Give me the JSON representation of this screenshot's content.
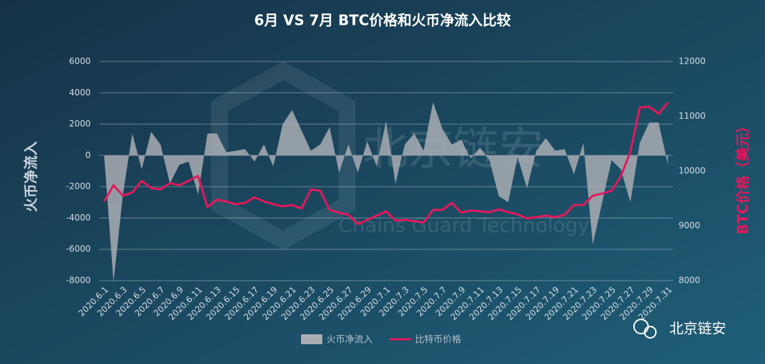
{
  "chart_data": {
    "type": "area-line",
    "title": "6月 VS 7月 BTC价格和火币净流入比较",
    "y_label": "火币净流入",
    "y2_label": "BTC价格（美元）",
    "watermark": "北京链安",
    "watermark_sub": "Chains Guard Technology",
    "badge": "北京链安",
    "categories": [
      "2020.6.1",
      null,
      "2020.6.3",
      null,
      "2020.6.5",
      null,
      "2020.6.7",
      null,
      "2020.6.9",
      null,
      "2020.6.11",
      null,
      "2020.6.13",
      null,
      "2020.6.15",
      null,
      "2020.6.17",
      null,
      "2020.6.19",
      null,
      "2020.6.21",
      null,
      "2020.6.23",
      null,
      "2020.6.25",
      null,
      "2020.6.27",
      null,
      "2020.6.29",
      null,
      "2020.7.1",
      null,
      "2020.7.3",
      null,
      "2020.7.5",
      null,
      "2020.7.7",
      null,
      "2020.7.9",
      null,
      "2020.7.11",
      null,
      "2020.7.13",
      null,
      "2020.7.15",
      null,
      "2020.7.17",
      null,
      "2020.7.19",
      null,
      "2020.7.21",
      null,
      "2020.7.23",
      null,
      "2020.7.25",
      null,
      "2020.7.27",
      null,
      "2020.7.29",
      null,
      "2020.7.31"
    ],
    "series": [
      {
        "name": "火币净流入",
        "color": "#a9adb3",
        "kind": "area",
        "values": [
          0,
          -8100,
          -2500,
          1400,
          -900,
          1500,
          700,
          -1800,
          -600,
          -400,
          -2500,
          1400,
          1400,
          200,
          300,
          400,
          -400,
          700,
          -700,
          2000,
          2900,
          1600,
          300,
          700,
          1800,
          -1100,
          700,
          -1100,
          900,
          -700,
          2200,
          -1800,
          700,
          1400,
          300,
          3400,
          1700,
          700,
          1000,
          -200,
          500,
          -300,
          -2600,
          -3000,
          -100,
          -2100,
          300,
          1100,
          300,
          400,
          -1200,
          800,
          -5700,
          -3000,
          -300,
          -900,
          -3000,
          800,
          2100,
          2100,
          -600
        ]
      },
      {
        "name": "比特币价格",
        "color": "#e3195c",
        "kind": "line",
        "axis": "y2",
        "values": [
          9445,
          9740,
          9550,
          9610,
          9820,
          9690,
          9665,
          9780,
          9740,
          9820,
          9910,
          9340,
          9480,
          9445,
          9395,
          9420,
          9520,
          9445,
          9395,
          9355,
          9380,
          9315,
          9665,
          9640,
          9290,
          9240,
          9200,
          9030,
          9110,
          9185,
          9265,
          9095,
          9110,
          9085,
          9060,
          9290,
          9290,
          9420,
          9240,
          9280,
          9265,
          9250,
          9300,
          9250,
          9210,
          9135,
          9160,
          9185,
          9160,
          9200,
          9380,
          9380,
          9550,
          9590,
          9640,
          9910,
          10350,
          11160,
          11175,
          11045,
          11250
        ]
      }
    ],
    "ylim": [
      -8000,
      6000
    ],
    "yticks": [
      -8000,
      -6000,
      -4000,
      -2000,
      0,
      2000,
      4000,
      6000
    ],
    "y2lim": [
      8000,
      12000
    ],
    "y2ticks": [
      8000,
      9000,
      10000,
      11000,
      12000
    ],
    "grid": true
  }
}
